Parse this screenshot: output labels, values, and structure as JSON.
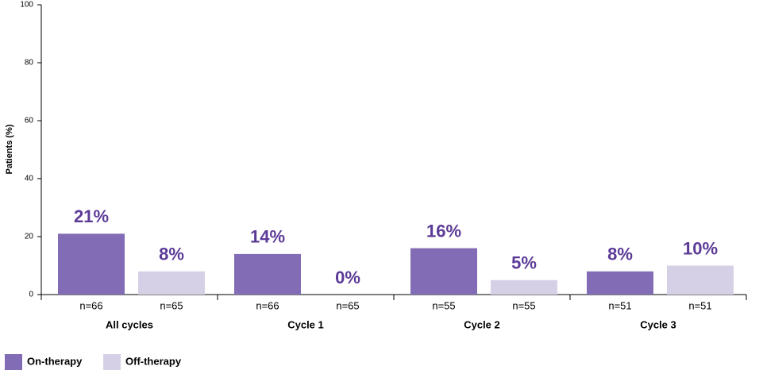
{
  "chart_data": {
    "type": "bar",
    "y_label": "Patients (%)",
    "categories": [
      "All cycles",
      "Cycle 1",
      "Cycle 2",
      "Cycle 3"
    ],
    "series": [
      {
        "name": "On-therapy",
        "color": "#826cb5",
        "values": [
          21,
          14,
          16,
          8
        ],
        "value_labels": [
          "21%",
          "14%",
          "16%",
          "8%"
        ],
        "n_labels": [
          "n=66",
          "n=66",
          "n=55",
          "n=51"
        ]
      },
      {
        "name": "Off-therapy",
        "color": "#d6d0e6",
        "values": [
          8,
          0,
          5,
          10
        ],
        "value_labels": [
          "8%",
          "0%",
          "5%",
          "10%"
        ],
        "n_labels": [
          "n=65",
          "n=65",
          "n=55",
          "n=51"
        ]
      }
    ],
    "ylim": [
      0,
      100
    ],
    "yticks": [
      0,
      20,
      40,
      60,
      80,
      100
    ],
    "grid": false,
    "legend": "bottom-left"
  }
}
